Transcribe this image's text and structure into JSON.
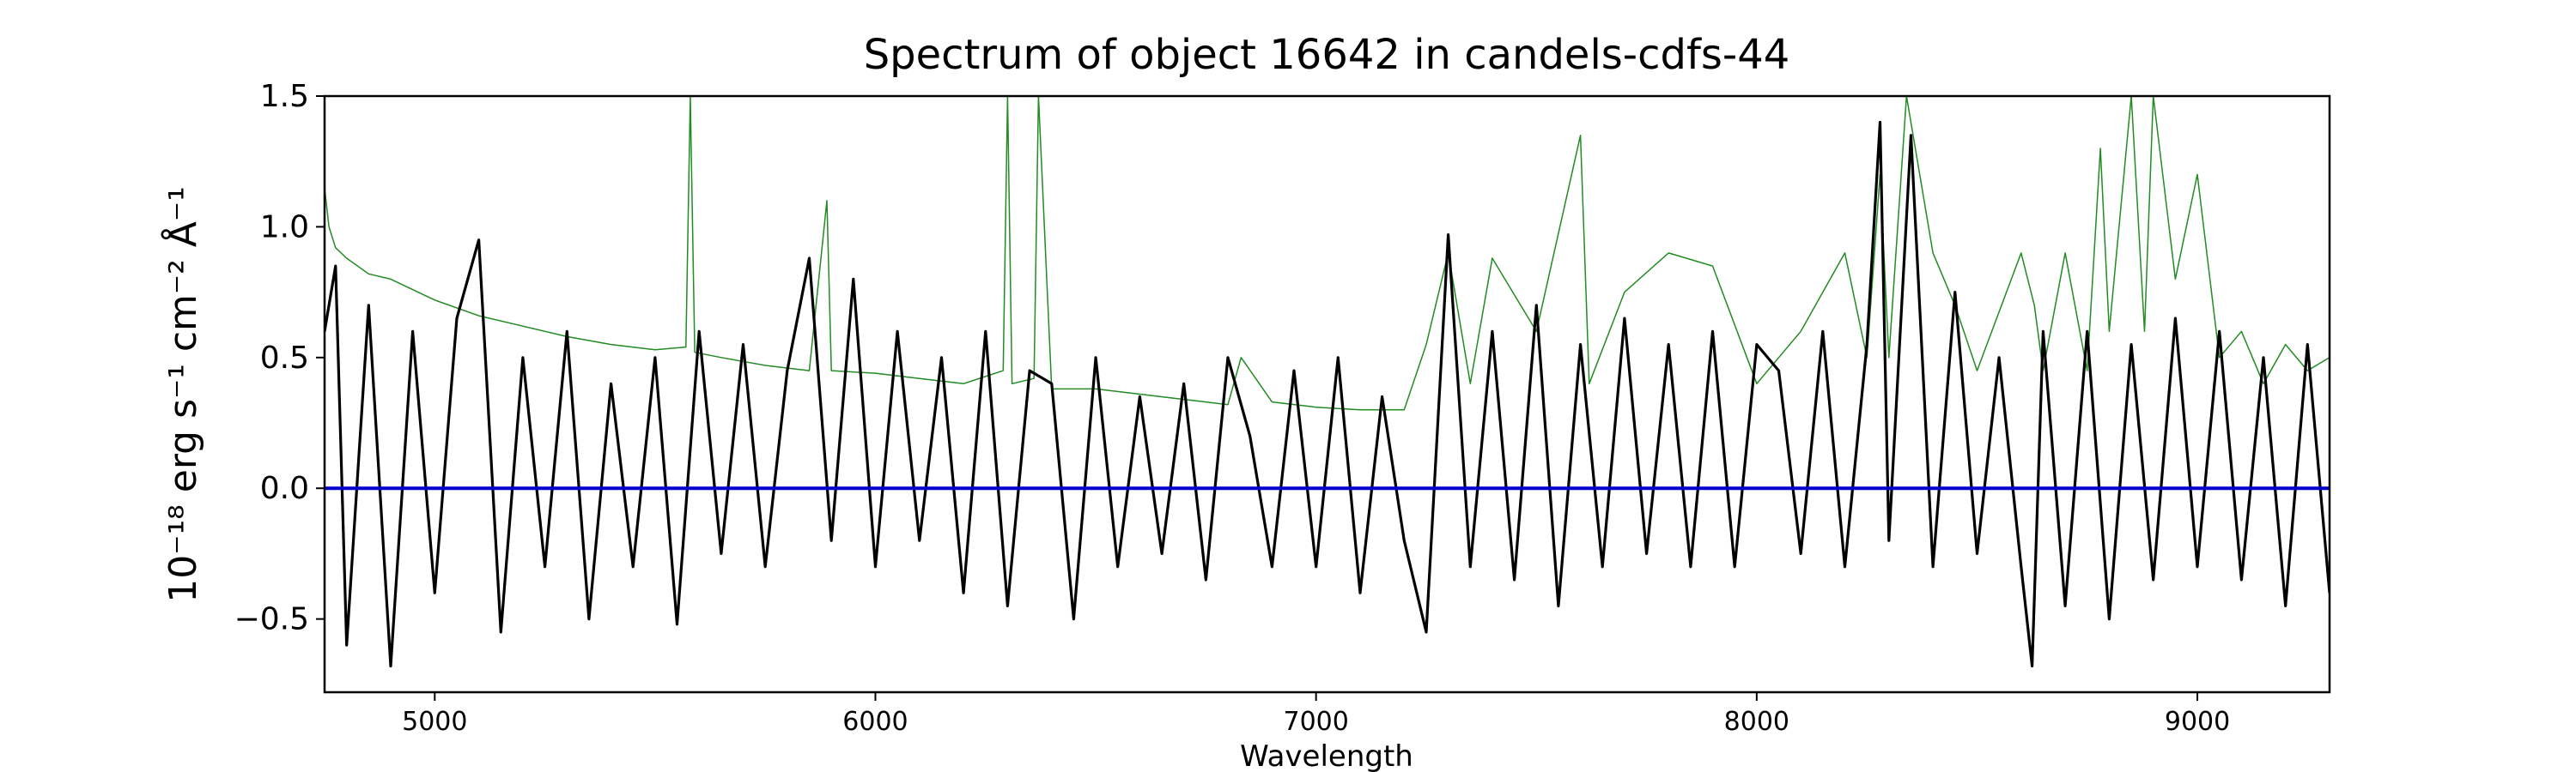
{
  "chart_data": {
    "type": "line",
    "title": "Spectrum of object 16642 in candels-cdfs-44",
    "xlabel": "Wavelength",
    "ylabel": "10⁻¹⁸ erg s⁻¹ cm⁻² Å⁻¹",
    "xlim": [
      4750,
      9300
    ],
    "ylim": [
      -0.78,
      1.5
    ],
    "x_ticks": [
      5000,
      6000,
      7000,
      8000,
      9000
    ],
    "y_ticks": [
      -0.5,
      0.0,
      0.5,
      1.0,
      1.5
    ],
    "x_tick_labels": [
      "5000",
      "6000",
      "7000",
      "8000",
      "9000"
    ],
    "y_tick_labels": [
      "−0.5",
      "0.0",
      "0.5",
      "1.0",
      "1.5"
    ],
    "grid": false,
    "colors": {
      "flux": "#000000",
      "error": "#228B22",
      "zero": "#0000cc"
    },
    "series": [
      {
        "key": "flux",
        "x": [
          4750,
          4775,
          4800,
          4850,
          4900,
          4950,
          5000,
          5050,
          5100,
          5150,
          5200,
          5250,
          5300,
          5350,
          5400,
          5450,
          5500,
          5550,
          5600,
          5650,
          5700,
          5750,
          5800,
          5850,
          5900,
          5950,
          6000,
          6050,
          6100,
          6150,
          6200,
          6250,
          6300,
          6350,
          6400,
          6450,
          6500,
          6550,
          6600,
          6650,
          6700,
          6750,
          6800,
          6850,
          6900,
          6950,
          7000,
          7050,
          7100,
          7150,
          7200,
          7250,
          7300,
          7350,
          7400,
          7450,
          7500,
          7550,
          7600,
          7650,
          7700,
          7750,
          7800,
          7850,
          7900,
          7950,
          8000,
          8050,
          8100,
          8150,
          8200,
          8250,
          8280,
          8300,
          8350,
          8400,
          8450,
          8500,
          8550,
          8600,
          8625,
          8650,
          8700,
          8750,
          8800,
          8850,
          8900,
          8950,
          9000,
          9050,
          9100,
          9150,
          9200,
          9250,
          9300
        ],
        "values": [
          0.6,
          0.85,
          -0.6,
          0.7,
          -0.68,
          0.6,
          -0.4,
          0.65,
          0.95,
          -0.55,
          0.5,
          -0.3,
          0.6,
          -0.5,
          0.4,
          -0.3,
          0.5,
          -0.52,
          0.6,
          -0.25,
          0.55,
          -0.3,
          0.45,
          0.88,
          -0.2,
          0.8,
          -0.3,
          0.6,
          -0.2,
          0.5,
          -0.4,
          0.6,
          -0.45,
          0.45,
          0.4,
          -0.5,
          0.5,
          -0.3,
          0.35,
          -0.25,
          0.4,
          -0.35,
          0.5,
          0.2,
          -0.3,
          0.45,
          -0.3,
          0.5,
          -0.4,
          0.35,
          -0.2,
          -0.55,
          0.97,
          -0.3,
          0.6,
          -0.35,
          0.7,
          -0.45,
          0.55,
          -0.3,
          0.65,
          -0.25,
          0.55,
          -0.3,
          0.6,
          -0.3,
          0.55,
          0.45,
          -0.25,
          0.6,
          -0.3,
          0.55,
          1.4,
          -0.2,
          1.35,
          -0.3,
          0.75,
          -0.25,
          0.5,
          -0.3,
          -0.68,
          0.6,
          -0.45,
          0.6,
          -0.5,
          0.55,
          -0.35,
          0.65,
          -0.3,
          0.6,
          -0.35,
          0.5,
          -0.45,
          0.55,
          -0.4
        ]
      },
      {
        "key": "error",
        "x": [
          4750,
          4760,
          4775,
          4800,
          4850,
          4900,
          5000,
          5100,
          5200,
          5300,
          5400,
          5500,
          5570,
          5580,
          5590,
          5650,
          5750,
          5850,
          5890,
          5900,
          6000,
          6100,
          6200,
          6290,
          6300,
          6310,
          6360,
          6370,
          6400,
          6500,
          6600,
          6700,
          6800,
          6830,
          6900,
          7000,
          7100,
          7200,
          7250,
          7300,
          7350,
          7400,
          7500,
          7600,
          7620,
          7700,
          7800,
          7900,
          8000,
          8100,
          8200,
          8250,
          8280,
          8300,
          8340,
          8400,
          8450,
          8500,
          8600,
          8630,
          8650,
          8700,
          8750,
          8780,
          8800,
          8850,
          8880,
          8900,
          8950,
          9000,
          9050,
          9100,
          9150,
          9200,
          9250,
          9300
        ],
        "values": [
          1.15,
          1.0,
          0.92,
          0.88,
          0.82,
          0.8,
          0.72,
          0.66,
          0.62,
          0.58,
          0.55,
          0.53,
          0.54,
          1.5,
          0.52,
          0.5,
          0.47,
          0.45,
          1.1,
          0.45,
          0.44,
          0.42,
          0.4,
          0.45,
          1.5,
          0.4,
          0.42,
          1.5,
          0.38,
          0.38,
          0.36,
          0.34,
          0.32,
          0.5,
          0.33,
          0.31,
          0.3,
          0.3,
          0.55,
          0.9,
          0.4,
          0.88,
          0.6,
          1.35,
          0.4,
          0.75,
          0.9,
          0.85,
          0.4,
          0.6,
          0.9,
          0.5,
          1.2,
          0.5,
          1.5,
          0.9,
          0.7,
          0.45,
          0.9,
          0.7,
          0.45,
          0.9,
          0.45,
          1.3,
          0.6,
          1.5,
          0.6,
          1.5,
          0.8,
          1.2,
          0.5,
          0.6,
          0.4,
          0.55,
          0.45,
          0.5
        ]
      },
      {
        "key": "zero",
        "x": [
          4750,
          9300
        ],
        "values": [
          0.0,
          0.0
        ]
      }
    ]
  }
}
